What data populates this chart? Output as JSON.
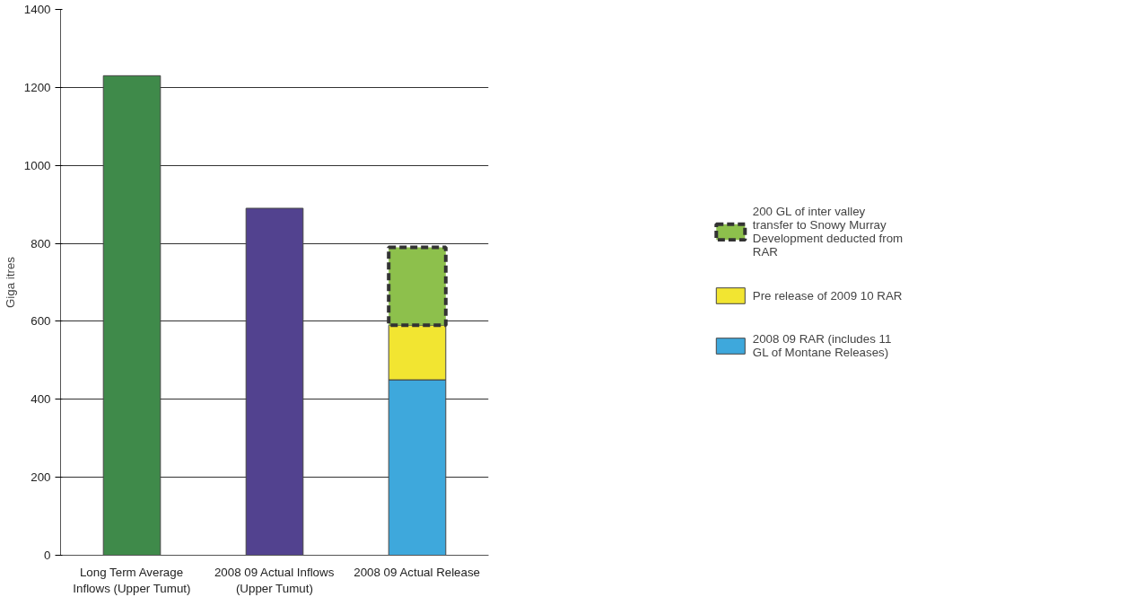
{
  "chart_data": {
    "type": "bar",
    "stacked": true,
    "ylabel": "Giga itres",
    "categories": [
      "Long Term Average Inflows (Upper Tumut)",
      "2008 09 Actual Inflows (Upper Tumut)",
      "2008 09 Actual Release"
    ],
    "series": [
      {
        "color": "#3f8a4a",
        "values": [
          1230,
          null,
          null
        ]
      },
      {
        "color": "#52428f",
        "values": [
          null,
          890,
          null
        ]
      },
      {
        "name": "2008 09 RAR (includes 11 GL of Montane Releases)",
        "color": "#3ea8dc",
        "values": [
          null,
          null,
          450
        ]
      },
      {
        "name": "Pre release of 2009 10 RAR",
        "color": "#f2e531",
        "values": [
          null,
          null,
          140
        ]
      },
      {
        "name": "200 GL of inter valley transfer to Snowy Murray Development deducted from RAR",
        "color": "#8dc04c",
        "values": [
          null,
          null,
          200
        ],
        "line_style": "dashed"
      }
    ],
    "ylim": [
      0,
      1400
    ],
    "yticks": [
      0,
      200,
      400,
      600,
      800,
      1000,
      1200,
      1400
    ],
    "grid": "y",
    "legend": "right"
  }
}
